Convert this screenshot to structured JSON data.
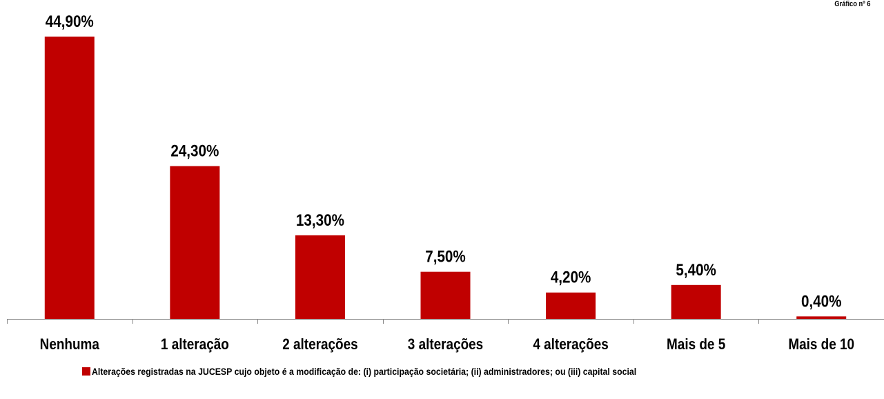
{
  "figure_label": "Gráfico nº 6",
  "chart_data": {
    "type": "bar",
    "categories": [
      "Nenhuma",
      "1 alteração",
      "2 alterações",
      "3 alterações",
      "4 alterações",
      "Mais de 5",
      "Mais de 10"
    ],
    "values": [
      44.9,
      24.3,
      13.3,
      7.5,
      4.2,
      5.4,
      0.4
    ],
    "value_labels": [
      "44,90%",
      "24,30%",
      "13,30%",
      "7,50%",
      "4,20%",
      "5,40%",
      "0,40%"
    ],
    "unit": "%",
    "title": "",
    "xlabel": "",
    "ylabel": "",
    "ylim": [
      0,
      44.9
    ],
    "grid": false,
    "legend_position": "bottom",
    "series": [
      {
        "name": "Alterações registradas  na JUCESP cujo objeto é a modificação  de: (i) participação  societária;  (ii) administradores;  ou (iii) capital social",
        "values": [
          44.9,
          24.3,
          13.3,
          7.5,
          4.2,
          5.4,
          0.4
        ]
      }
    ],
    "bar_color": "#C00000"
  }
}
